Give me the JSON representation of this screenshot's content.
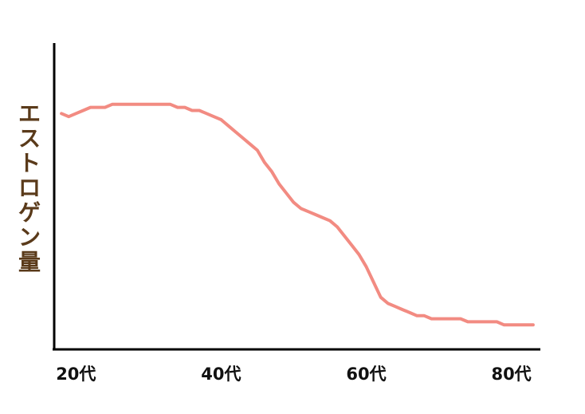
{
  "chart_data": {
    "type": "line",
    "title": "",
    "ylabel": "エストロゲン量",
    "xlabel": "",
    "x_ticks": [
      "20代",
      "40代",
      "60代",
      "80代"
    ],
    "x_tick_values": [
      20,
      40,
      60,
      80
    ],
    "xlim": [
      17,
      84
    ],
    "ylim": [
      0,
      100
    ],
    "y_axis_ticks": "none",
    "grid": false,
    "legend": "none",
    "series": [
      {
        "values": [
          [
            18,
            77
          ],
          [
            19,
            76
          ],
          [
            20,
            77
          ],
          [
            21,
            78
          ],
          [
            22,
            79
          ],
          [
            23,
            79
          ],
          [
            24,
            79
          ],
          [
            25,
            80
          ],
          [
            26,
            80
          ],
          [
            27,
            80
          ],
          [
            28,
            80
          ],
          [
            29,
            80
          ],
          [
            30,
            80
          ],
          [
            31,
            80
          ],
          [
            32,
            80
          ],
          [
            33,
            80
          ],
          [
            34,
            79
          ],
          [
            35,
            79
          ],
          [
            36,
            78
          ],
          [
            37,
            78
          ],
          [
            38,
            77
          ],
          [
            39,
            76
          ],
          [
            40,
            75
          ],
          [
            41,
            73
          ],
          [
            42,
            71
          ],
          [
            43,
            69
          ],
          [
            44,
            67
          ],
          [
            45,
            65
          ],
          [
            46,
            61
          ],
          [
            47,
            58
          ],
          [
            48,
            54
          ],
          [
            49,
            51
          ],
          [
            50,
            48
          ],
          [
            51,
            46
          ],
          [
            52,
            45
          ],
          [
            53,
            44
          ],
          [
            54,
            43
          ],
          [
            55,
            42
          ],
          [
            56,
            40
          ],
          [
            57,
            37
          ],
          [
            58,
            34
          ],
          [
            59,
            31
          ],
          [
            60,
            27
          ],
          [
            61,
            22
          ],
          [
            62,
            17
          ],
          [
            63,
            15
          ],
          [
            64,
            14
          ],
          [
            65,
            13
          ],
          [
            66,
            12
          ],
          [
            67,
            11
          ],
          [
            68,
            11
          ],
          [
            69,
            10
          ],
          [
            70,
            10
          ],
          [
            71,
            10
          ],
          [
            72,
            10
          ],
          [
            73,
            10
          ],
          [
            74,
            9
          ],
          [
            75,
            9
          ],
          [
            76,
            9
          ],
          [
            77,
            9
          ],
          [
            78,
            9
          ],
          [
            79,
            8
          ],
          [
            80,
            8
          ],
          [
            81,
            8
          ],
          [
            82,
            8
          ],
          [
            83,
            8
          ]
        ]
      }
    ],
    "line_color": "#f28b82",
    "axis_color": "#000000",
    "ylabel_color": "#5a3a1a"
  }
}
